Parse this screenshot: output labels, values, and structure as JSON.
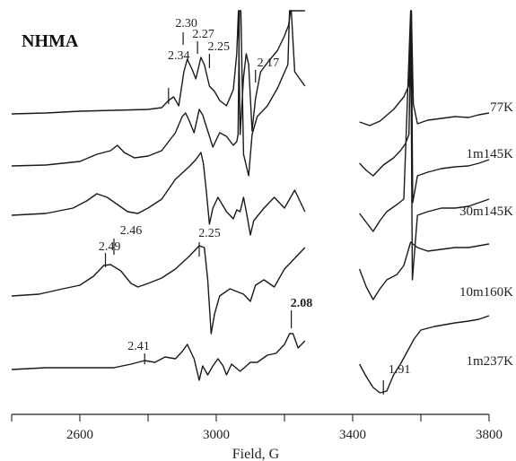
{
  "chart_data": {
    "type": "line",
    "title": "NHMA",
    "xlabel": "Field, G",
    "ylabel": "",
    "xlim": [
      2400,
      3800
    ],
    "x_ticks": [
      2400,
      2600,
      2800,
      3000,
      3200,
      3400,
      3600,
      3800
    ],
    "x_tick_labels": [
      "2600",
      "3000",
      "3400",
      "3800"
    ],
    "grid": false,
    "series": [
      {
        "name": "77K"
      },
      {
        "name": "1m145K"
      },
      {
        "name": "30m145K"
      },
      {
        "name": "10m160K"
      },
      {
        "name": "1m237K"
      }
    ],
    "annotations": [
      {
        "text": "2.34",
        "series": "77K"
      },
      {
        "text": "2.30",
        "series": "77K"
      },
      {
        "text": "2.27",
        "series": "77K"
      },
      {
        "text": "2.25",
        "series": "77K"
      },
      {
        "text": "2.17",
        "series": "77K"
      },
      {
        "text": "2.49",
        "series": "10m160K"
      },
      {
        "text": "2.46",
        "series": "10m160K"
      },
      {
        "text": "2.25",
        "series": "10m160K"
      },
      {
        "text": "2.08",
        "series": "1m237K",
        "bold": true
      },
      {
        "text": "2.41",
        "series": "1m237K"
      },
      {
        "text": "1.91",
        "series": "1m237K"
      }
    ]
  }
}
